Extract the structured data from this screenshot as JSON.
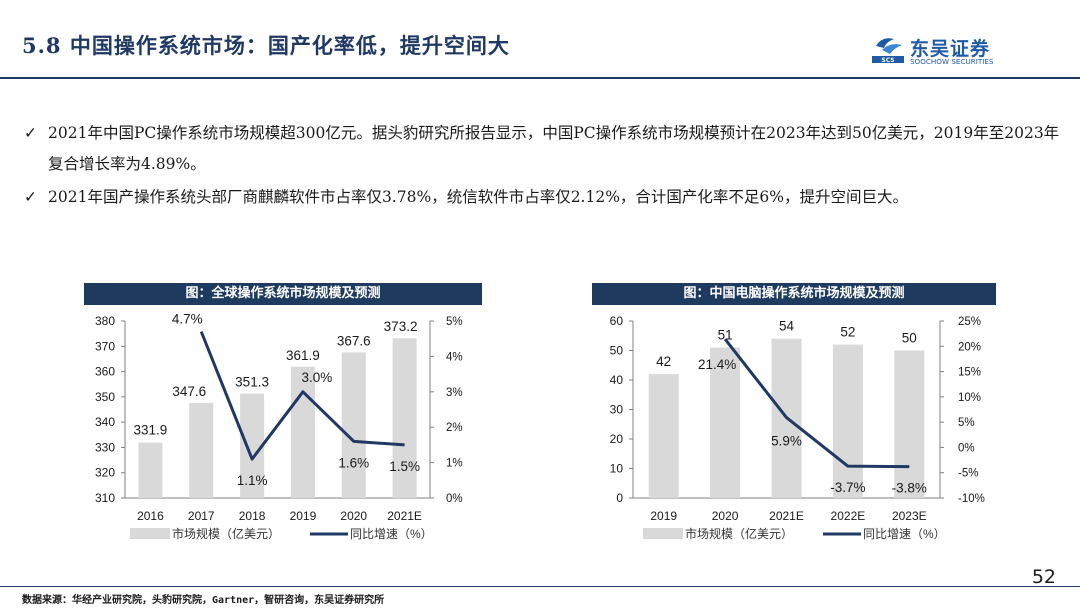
{
  "header": {
    "title": "5.8 中国操作系统市场：国产化率低，提升空间大",
    "logo_cn": "东吴证券",
    "logo_en": "SOOCHOW SECURITIES",
    "logo_mark_text": "SCS"
  },
  "bullets": [
    "2021年中国PC操作系统市场规模超300亿元。据头豹研究所报告显示，中国PC操作系统市场规模预计在2023年达到50亿美元，2019年至2023年复合增长率为4.89%。",
    "2021年国产操作系统头部厂商麒麟软件市占率仅3.78%，统信软件市占率仅2.12%，合计国产化率不足6%，提升空间巨大。"
  ],
  "check_glyph": "✓",
  "colors": {
    "navy": "#1e3a5f",
    "bar": "#d9d9d9",
    "line": "#1f3864"
  },
  "chart_data": [
    {
      "type": "bar+line",
      "title": "图：全球操作系统市场规模及预测",
      "categories": [
        "2016",
        "2017",
        "2018",
        "2019",
        "2020",
        "2021E"
      ],
      "series": [
        {
          "name": "市场规模（亿美元）",
          "type": "bar",
          "axis": "left",
          "values": [
            331.9,
            347.6,
            351.3,
            361.9,
            367.6,
            373.2
          ],
          "labels": [
            "331.9",
            "347.6",
            "351.3",
            "361.9",
            "367.6",
            "373.2"
          ]
        },
        {
          "name": "同比增速（%）",
          "type": "line",
          "axis": "right",
          "values": [
            null,
            4.7,
            1.1,
            3.0,
            1.6,
            1.5
          ],
          "labels": [
            "",
            "4.7%",
            "1.1%",
            "3.0%",
            "1.6%",
            "1.5%"
          ]
        }
      ],
      "left_axis": {
        "min": 310,
        "max": 380,
        "ticks": [
          "310",
          "320",
          "330",
          "340",
          "350",
          "360",
          "370",
          "380"
        ]
      },
      "right_axis": {
        "min": 0,
        "max": 5,
        "ticks": [
          "0%",
          "1%",
          "2%",
          "3%",
          "4%",
          "5%"
        ]
      },
      "legend": [
        "市场规模（亿美元）",
        "同比增速（%）"
      ]
    },
    {
      "type": "bar+line",
      "title": "图：中国电脑操作系统市场规模及预测",
      "categories": [
        "2019",
        "2020",
        "2021E",
        "2022E",
        "2023E"
      ],
      "series": [
        {
          "name": "市场规模（亿美元）",
          "type": "bar",
          "axis": "left",
          "values": [
            42,
            51,
            54,
            52,
            50
          ],
          "labels": [
            "42",
            "51",
            "54",
            "52",
            "50"
          ]
        },
        {
          "name": "同比增速（%）",
          "type": "line",
          "axis": "right",
          "values": [
            null,
            21.4,
            5.9,
            -3.7,
            -3.8
          ],
          "labels": [
            "",
            "21.4%",
            "5.9%",
            "-3.7%",
            "-3.8%"
          ]
        }
      ],
      "left_axis": {
        "min": 0,
        "max": 60,
        "ticks": [
          "0",
          "10",
          "20",
          "30",
          "40",
          "50",
          "60"
        ]
      },
      "right_axis": {
        "min": -10,
        "max": 25,
        "ticks": [
          "-10%",
          "-5%",
          "0%",
          "5%",
          "10%",
          "15%",
          "20%",
          "25%"
        ]
      },
      "legend": [
        "市场规模（亿美元）",
        "同比增速（%）"
      ]
    }
  ],
  "footer": {
    "source": "数据来源：华经产业研究院，头豹研究院，Gartner，智研咨询，东吴证券研究所",
    "page_number": "52"
  }
}
